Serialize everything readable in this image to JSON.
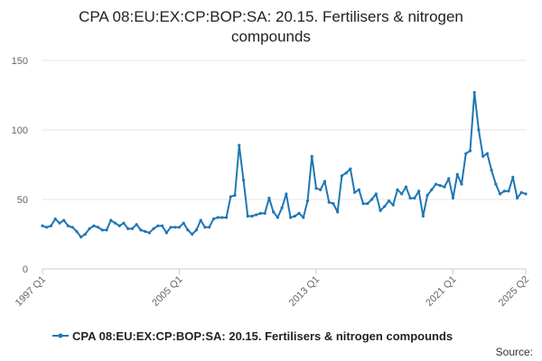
{
  "chart_data": {
    "type": "line",
    "title_lines": [
      "CPA 08:EU:EX:CP:BOP:SA: 20.15. Fertilisers & nitrogen",
      "compounds"
    ],
    "x_tick_labels": [
      "1997 Q1",
      "2005 Q1",
      "2013 Q1",
      "2021 Q1",
      "2025 Q2"
    ],
    "x_start": "1997 Q1",
    "x_end": "2025 Q2",
    "ylim": [
      0,
      150
    ],
    "y_ticks": [
      0,
      50,
      100,
      150
    ],
    "grid": true,
    "legend_position": "bottom",
    "series": [
      {
        "name": "CPA 08:EU:EX:CP:BOP:SA: 20.15. Fertilisers & nitrogen compounds",
        "color": "#1f77b4",
        "values": [
          31,
          30,
          31,
          36,
          33,
          35,
          31,
          30,
          27,
          23,
          25,
          29,
          31,
          30,
          28,
          28,
          35,
          33,
          31,
          33,
          29,
          29,
          32,
          28,
          27,
          26,
          29,
          31,
          31,
          26,
          30,
          30,
          30,
          33,
          28,
          25,
          28,
          35,
          30,
          30,
          36,
          37,
          37,
          37,
          52,
          53,
          89,
          64,
          38,
          38,
          39,
          40,
          40,
          51,
          41,
          37,
          44,
          54,
          37,
          38,
          40,
          37,
          49,
          81,
          58,
          57,
          63,
          48,
          47,
          41,
          67,
          69,
          72,
          55,
          57,
          47,
          47,
          50,
          54,
          42,
          45,
          49,
          46,
          57,
          54,
          59,
          51,
          51,
          56,
          38,
          53,
          57,
          61,
          60,
          59,
          65,
          51,
          68,
          61,
          83,
          85,
          127,
          100,
          81,
          83,
          71,
          61,
          54,
          56,
          56,
          66,
          51,
          55,
          54
        ],
        "x_tick_indices": [
          0,
          32,
          64,
          96,
          113
        ]
      }
    ],
    "source_label": "Source:"
  }
}
